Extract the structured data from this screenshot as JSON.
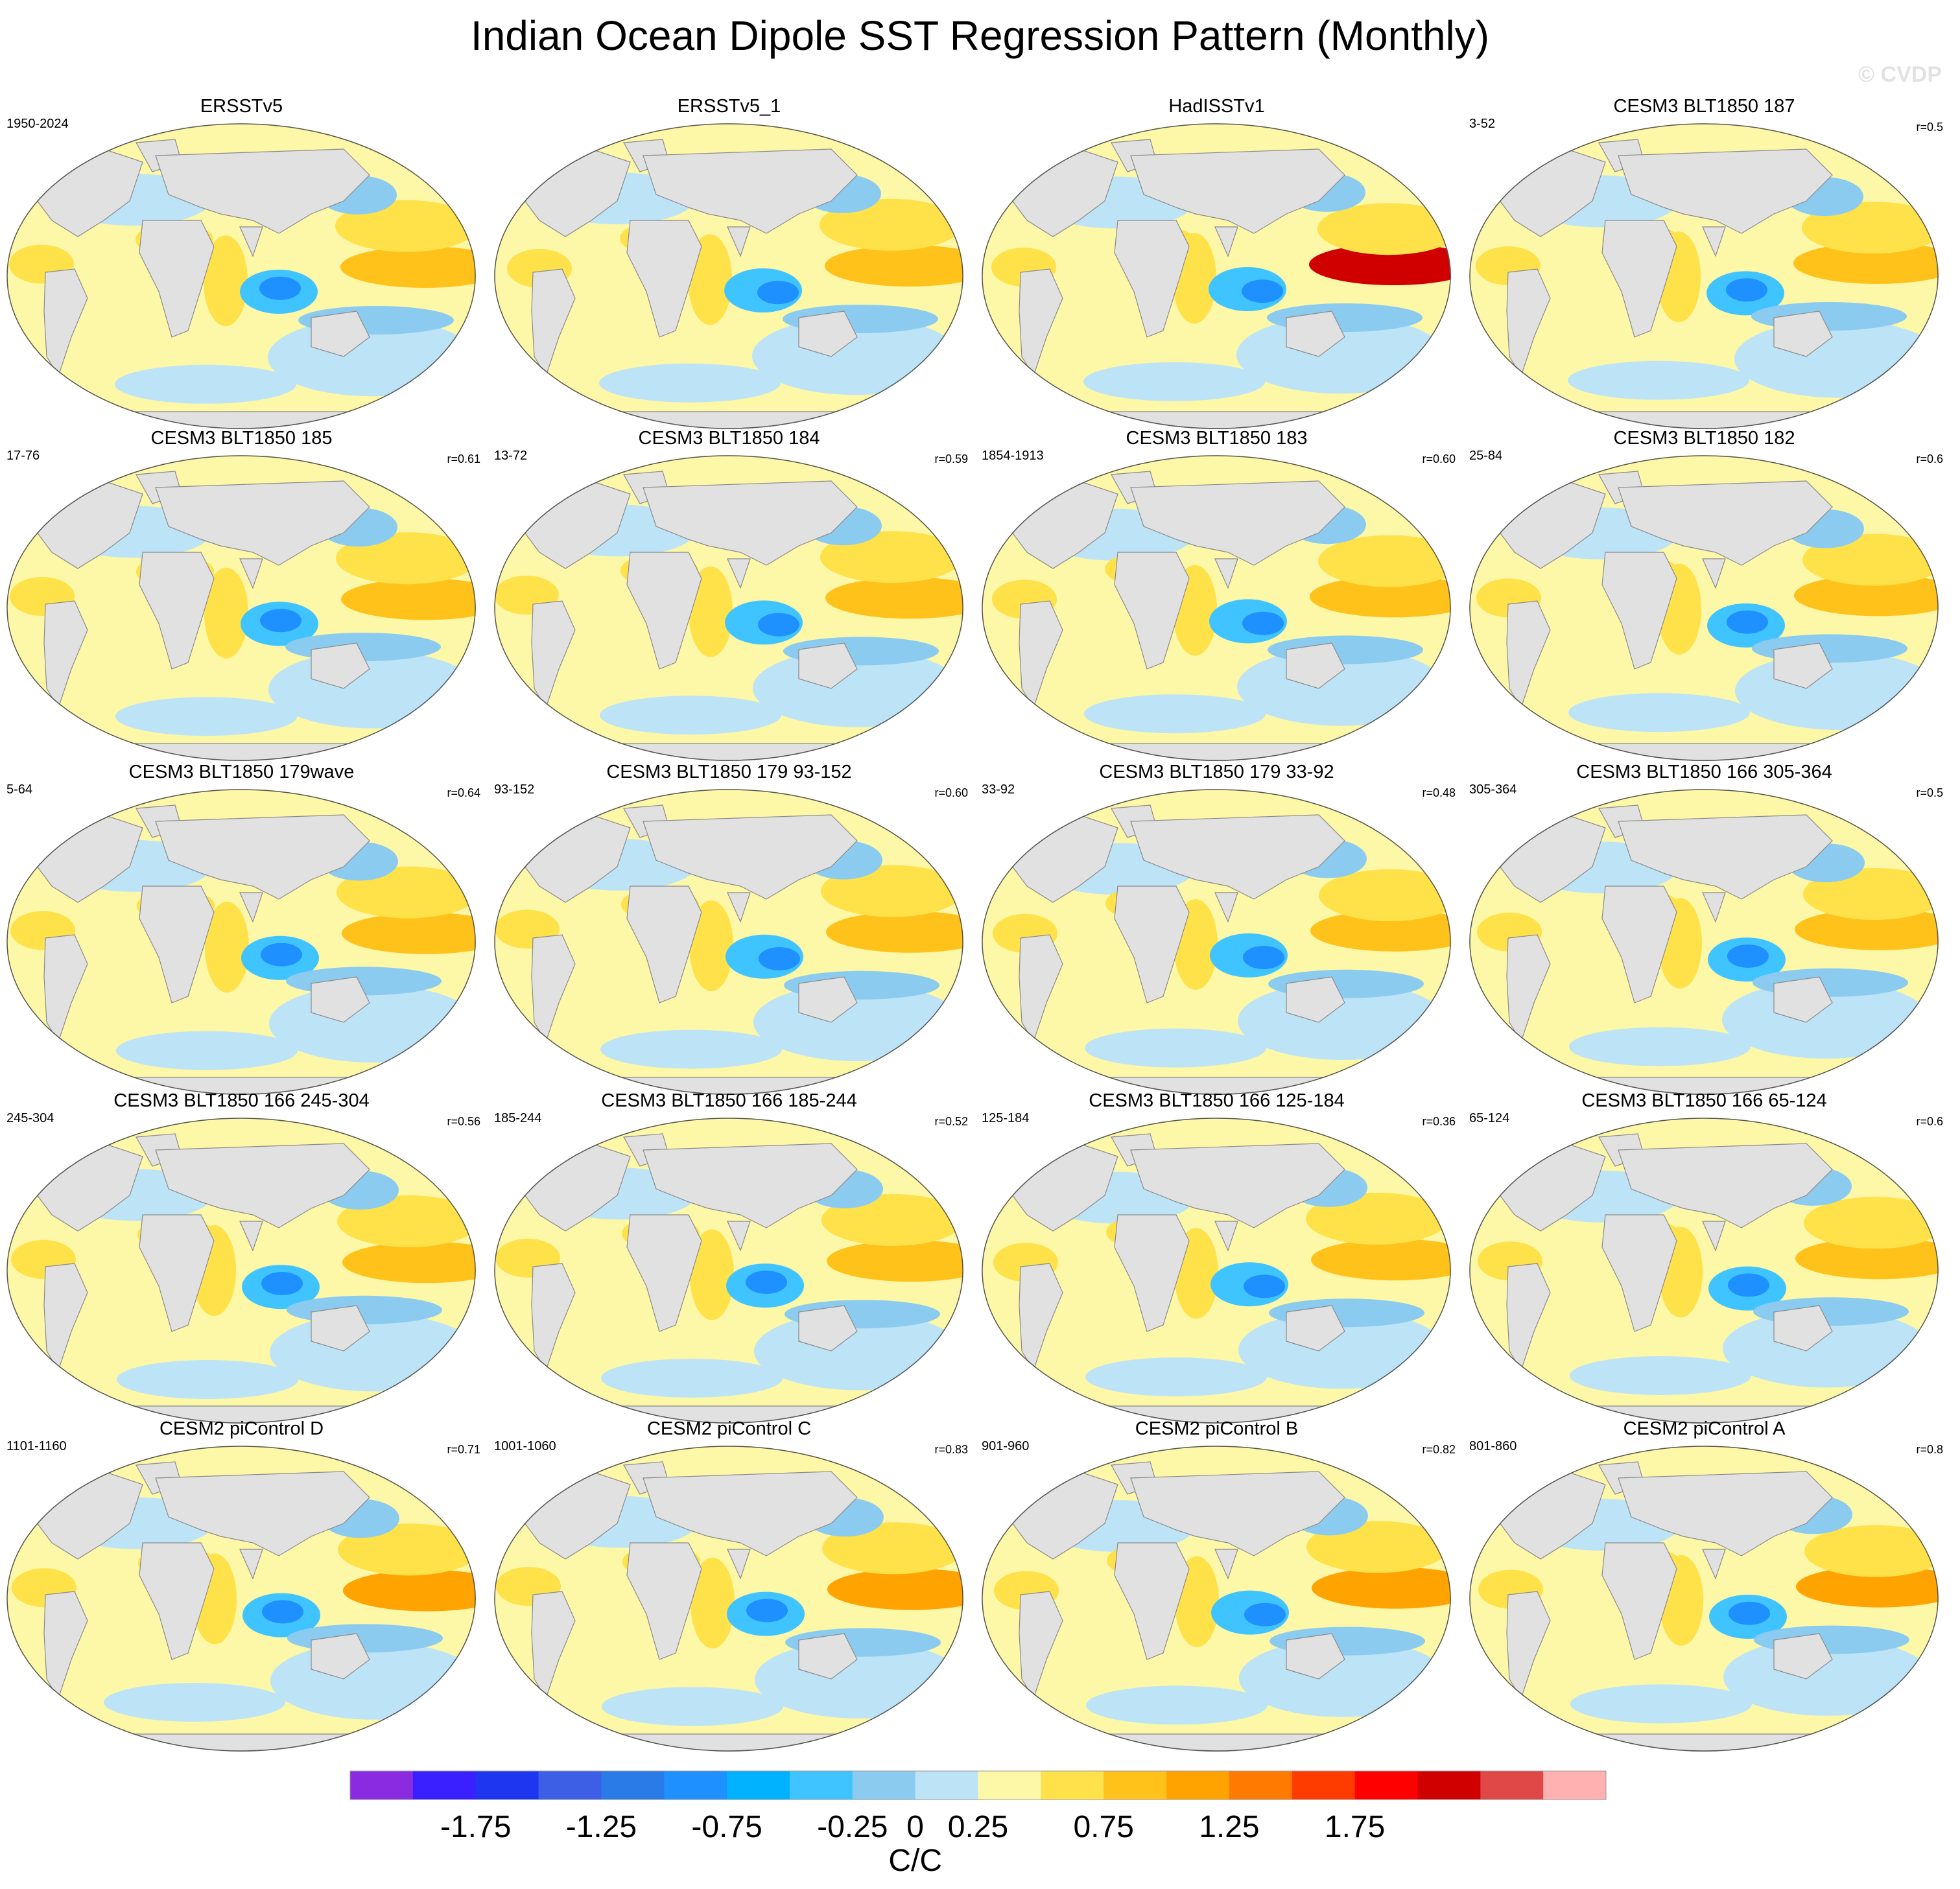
{
  "title": "Indian Ocean Dipole SST Regression Pattern (Monthly)",
  "watermark": "© CVDP",
  "chart_data": {
    "type": "heatmap",
    "variable": "SST regression",
    "colorbar": {
      "units": "C/C",
      "boundaries": [
        -2.0,
        -1.75,
        -1.5,
        -1.25,
        -1.0,
        -0.75,
        -0.5,
        -0.25,
        0,
        0.25,
        0.5,
        0.75,
        1.0,
        1.25,
        1.5,
        1.75,
        2.0
      ],
      "tick_labels": [
        "-1.75",
        "-1.25",
        "-0.75",
        "-0.25",
        "0",
        "0.25",
        "0.75",
        "1.25",
        "1.75"
      ],
      "tick_values": [
        -1.75,
        -1.25,
        -0.75,
        -0.25,
        0,
        0.25,
        0.75,
        1.25,
        1.75
      ],
      "colors": [
        "#8a2be2",
        "#3a1fff",
        "#1f36f0",
        "#3d5fe6",
        "#2a7ae8",
        "#1e90ff",
        "#00b2ff",
        "#40c4ff",
        "#8ccbf0",
        "#bde3f7",
        "#fdf7a8",
        "#ffe14a",
        "#ffc21a",
        "#ffa300",
        "#ff7a00",
        "#ff3c00",
        "#ff0000",
        "#d10000",
        "#e04848",
        "#ffb0b0"
      ]
    },
    "panels": [
      {
        "title": "ERSSTv5",
        "years": "1950-2024",
        "r": ""
      },
      {
        "title": "ERSSTv5_1",
        "years": "",
        "r": ""
      },
      {
        "title": "HadISSTv1",
        "years": "",
        "r": ""
      },
      {
        "title": "CESM3 BLT1850 187",
        "years": "3-52",
        "r": "r=0.5"
      },
      {
        "title": "CESM3 BLT1850 185",
        "years": "17-76",
        "r": "r=0.61"
      },
      {
        "title": "CESM3 BLT1850 184",
        "years": "13-72",
        "r": "r=0.59"
      },
      {
        "title": "CESM3 BLT1850 183",
        "years": "1854-1913",
        "r": "r=0.60"
      },
      {
        "title": "CESM3 BLT1850 182",
        "years": "25-84",
        "r": "r=0.6"
      },
      {
        "title": "CESM3 BLT1850 179wave",
        "years": "5-64",
        "r": "r=0.64"
      },
      {
        "title": "CESM3 BLT1850 179 93-152",
        "years": "93-152",
        "r": "r=0.60"
      },
      {
        "title": "CESM3 BLT1850 179 33-92",
        "years": "33-92",
        "r": "r=0.48"
      },
      {
        "title": "CESM3 BLT1850 166 305-364",
        "years": "305-364",
        "r": "r=0.5"
      },
      {
        "title": "CESM3 BLT1850 166 245-304",
        "years": "245-304",
        "r": "r=0.56"
      },
      {
        "title": "CESM3 BLT1850 166 185-244",
        "years": "185-244",
        "r": "r=0.52"
      },
      {
        "title": "CESM3 BLT1850 166 125-184",
        "years": "125-184",
        "r": "r=0.36"
      },
      {
        "title": "CESM3 BLT1850 166 65-124",
        "years": "65-124",
        "r": "r=0.6"
      },
      {
        "title": "CESM2 piControl D",
        "years": "1101-1160",
        "r": "r=0.71"
      },
      {
        "title": "CESM2 piControl C",
        "years": "1001-1060",
        "r": "r=0.83"
      },
      {
        "title": "CESM2 piControl B",
        "years": "901-960",
        "r": "r=0.82"
      },
      {
        "title": "CESM2 piControl A",
        "years": "801-860",
        "r": "r=0.8"
      }
    ]
  }
}
